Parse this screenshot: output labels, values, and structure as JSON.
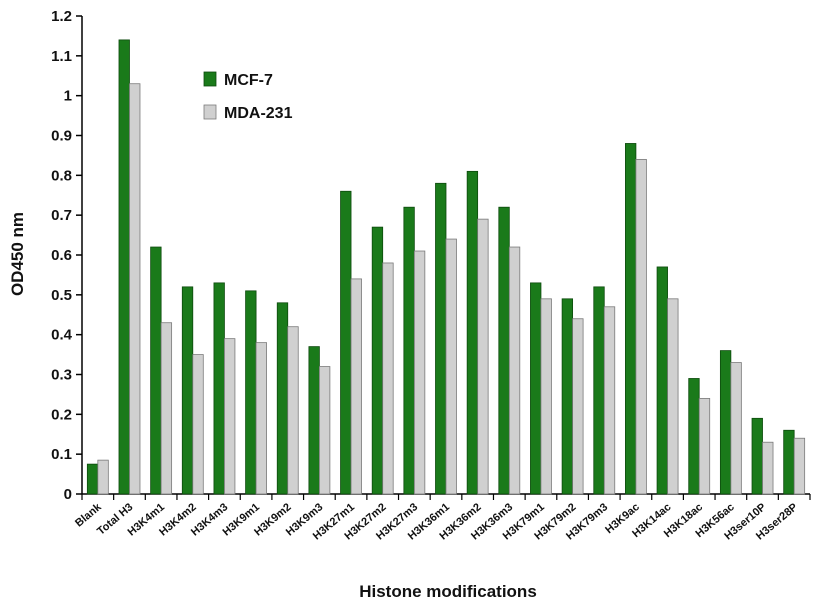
{
  "chart_data": {
    "type": "bar",
    "xlabel": "Histone modifications",
    "ylabel": "OD450 nm",
    "ylim": [
      0,
      1.2
    ],
    "yticks": [
      "0",
      "0.1",
      "0.2",
      "0.3",
      "0.4",
      "0.5",
      "0.6",
      "0.7",
      "0.8",
      "0.9",
      "1",
      "1.1",
      "1.2"
    ],
    "grid": false,
    "legend_position": "top-center",
    "categories": [
      "Blank",
      "Total H3",
      "H3K4m1",
      "H3K4m2",
      "H3K4m3",
      "H3K9m1",
      "H3K9m2",
      "H3K9m3",
      "H3K27m1",
      "H3K27m2",
      "H3K27m3",
      "H3K36m1",
      "H3K36m2",
      "H3K36m3",
      "H3K79m1",
      "H3K79m2",
      "H3K79m3",
      "H3K9ac",
      "H3K14ac",
      "H3K18ac",
      "H3K56ac",
      "H3ser10P",
      "H3ser28P"
    ],
    "series": [
      {
        "name": "MCF-7",
        "color": "#1a7a1a",
        "values": [
          0.075,
          1.14,
          0.62,
          0.52,
          0.53,
          0.51,
          0.48,
          0.37,
          0.76,
          0.67,
          0.72,
          0.78,
          0.81,
          0.72,
          0.53,
          0.49,
          0.52,
          0.88,
          0.57,
          0.29,
          0.36,
          0.19,
          0.16
        ]
      },
      {
        "name": "MDA-231",
        "color": "#d0d0d0",
        "values": [
          0.085,
          1.03,
          0.43,
          0.35,
          0.39,
          0.38,
          0.42,
          0.32,
          0.54,
          0.58,
          0.61,
          0.64,
          0.69,
          0.62,
          0.49,
          0.44,
          0.47,
          0.84,
          0.49,
          0.24,
          0.33,
          0.13,
          0.14
        ]
      }
    ]
  }
}
